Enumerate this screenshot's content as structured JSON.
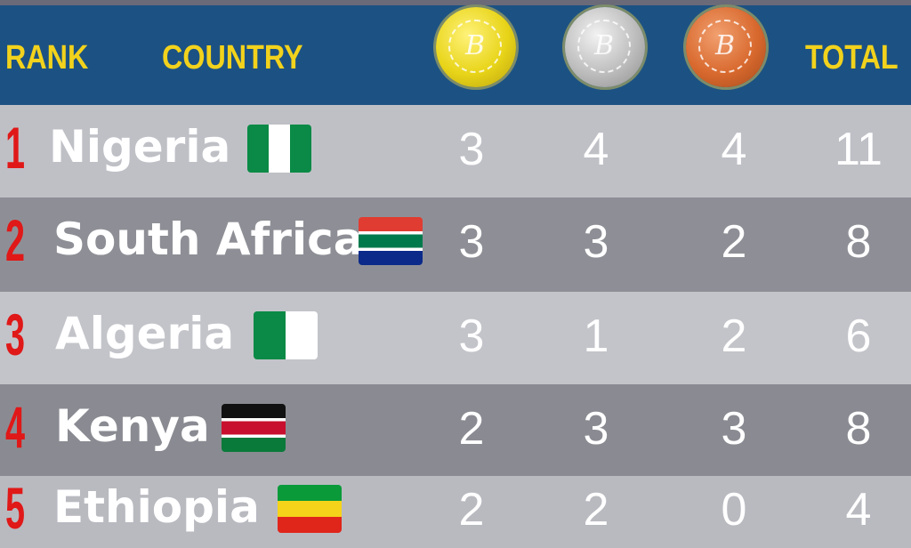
{
  "header": {
    "rank": "RANK",
    "country": "COUNTRY",
    "medals": [
      {
        "icon": "gold-medal-icon",
        "color": "#e8d418"
      },
      {
        "icon": "silver-medal-icon",
        "color": "#bdbdbd"
      },
      {
        "icon": "bronze-medal-icon",
        "color": "#d8692e"
      }
    ],
    "medal_glyph": "B",
    "total": "TOTAL"
  },
  "rows": [
    {
      "rank": "1",
      "country": "Nigeria",
      "flag": "nigeria-flag-icon",
      "gold": "3",
      "silver": "4",
      "bronze": "4",
      "total": "11"
    },
    {
      "rank": "2",
      "country": "South Africa",
      "flag": "south-africa-flag-icon",
      "gold": "3",
      "silver": "3",
      "bronze": "2",
      "total": "8"
    },
    {
      "rank": "3",
      "country": "Algeria",
      "flag": "algeria-flag-icon",
      "gold": "3",
      "silver": "1",
      "bronze": "2",
      "total": "6"
    },
    {
      "rank": "4",
      "country": "Kenya",
      "flag": "kenya-flag-icon",
      "gold": "2",
      "silver": "3",
      "bronze": "3",
      "total": "8"
    },
    {
      "rank": "5",
      "country": "Ethiopia",
      "flag": "ethiopia-flag-icon",
      "gold": "2",
      "silver": "2",
      "bronze": "0",
      "total": "4"
    }
  ],
  "colors": {
    "header": "#1c5283",
    "header_text": "#f2d21c",
    "rank": "#e01818"
  }
}
